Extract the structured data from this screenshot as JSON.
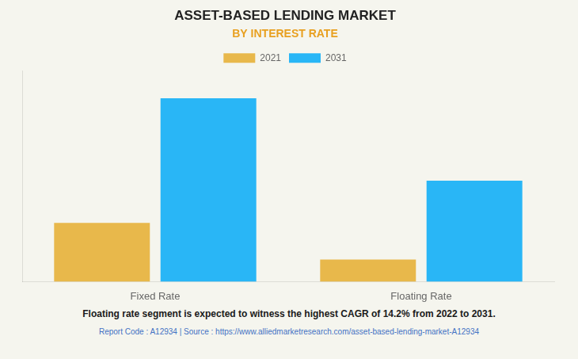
{
  "chart_data": {
    "type": "bar",
    "title": "ASSET-BASED LENDING MARKET",
    "subtitle": "BY INTEREST RATE",
    "categories": [
      "Fixed Rate",
      "Floating Rate"
    ],
    "series": [
      {
        "name": "2021",
        "color": "#E8B84B",
        "values": [
          32,
          12
        ]
      },
      {
        "name": "2031",
        "color": "#29B6F6",
        "values": [
          100,
          55
        ]
      }
    ],
    "ylim": [
      0,
      115
    ],
    "yticks": [],
    "grid": false,
    "legend": "top",
    "tick_labels": "x",
    "annotations": [
      "Floating rate segment is expected to witness the highest CAGR of 14.2% from 2022 to 2031.",
      "Report Code : A12934  |  Source : https://www.alliedmarketresearch.com/asset-based-lending-market-A12934"
    ]
  }
}
